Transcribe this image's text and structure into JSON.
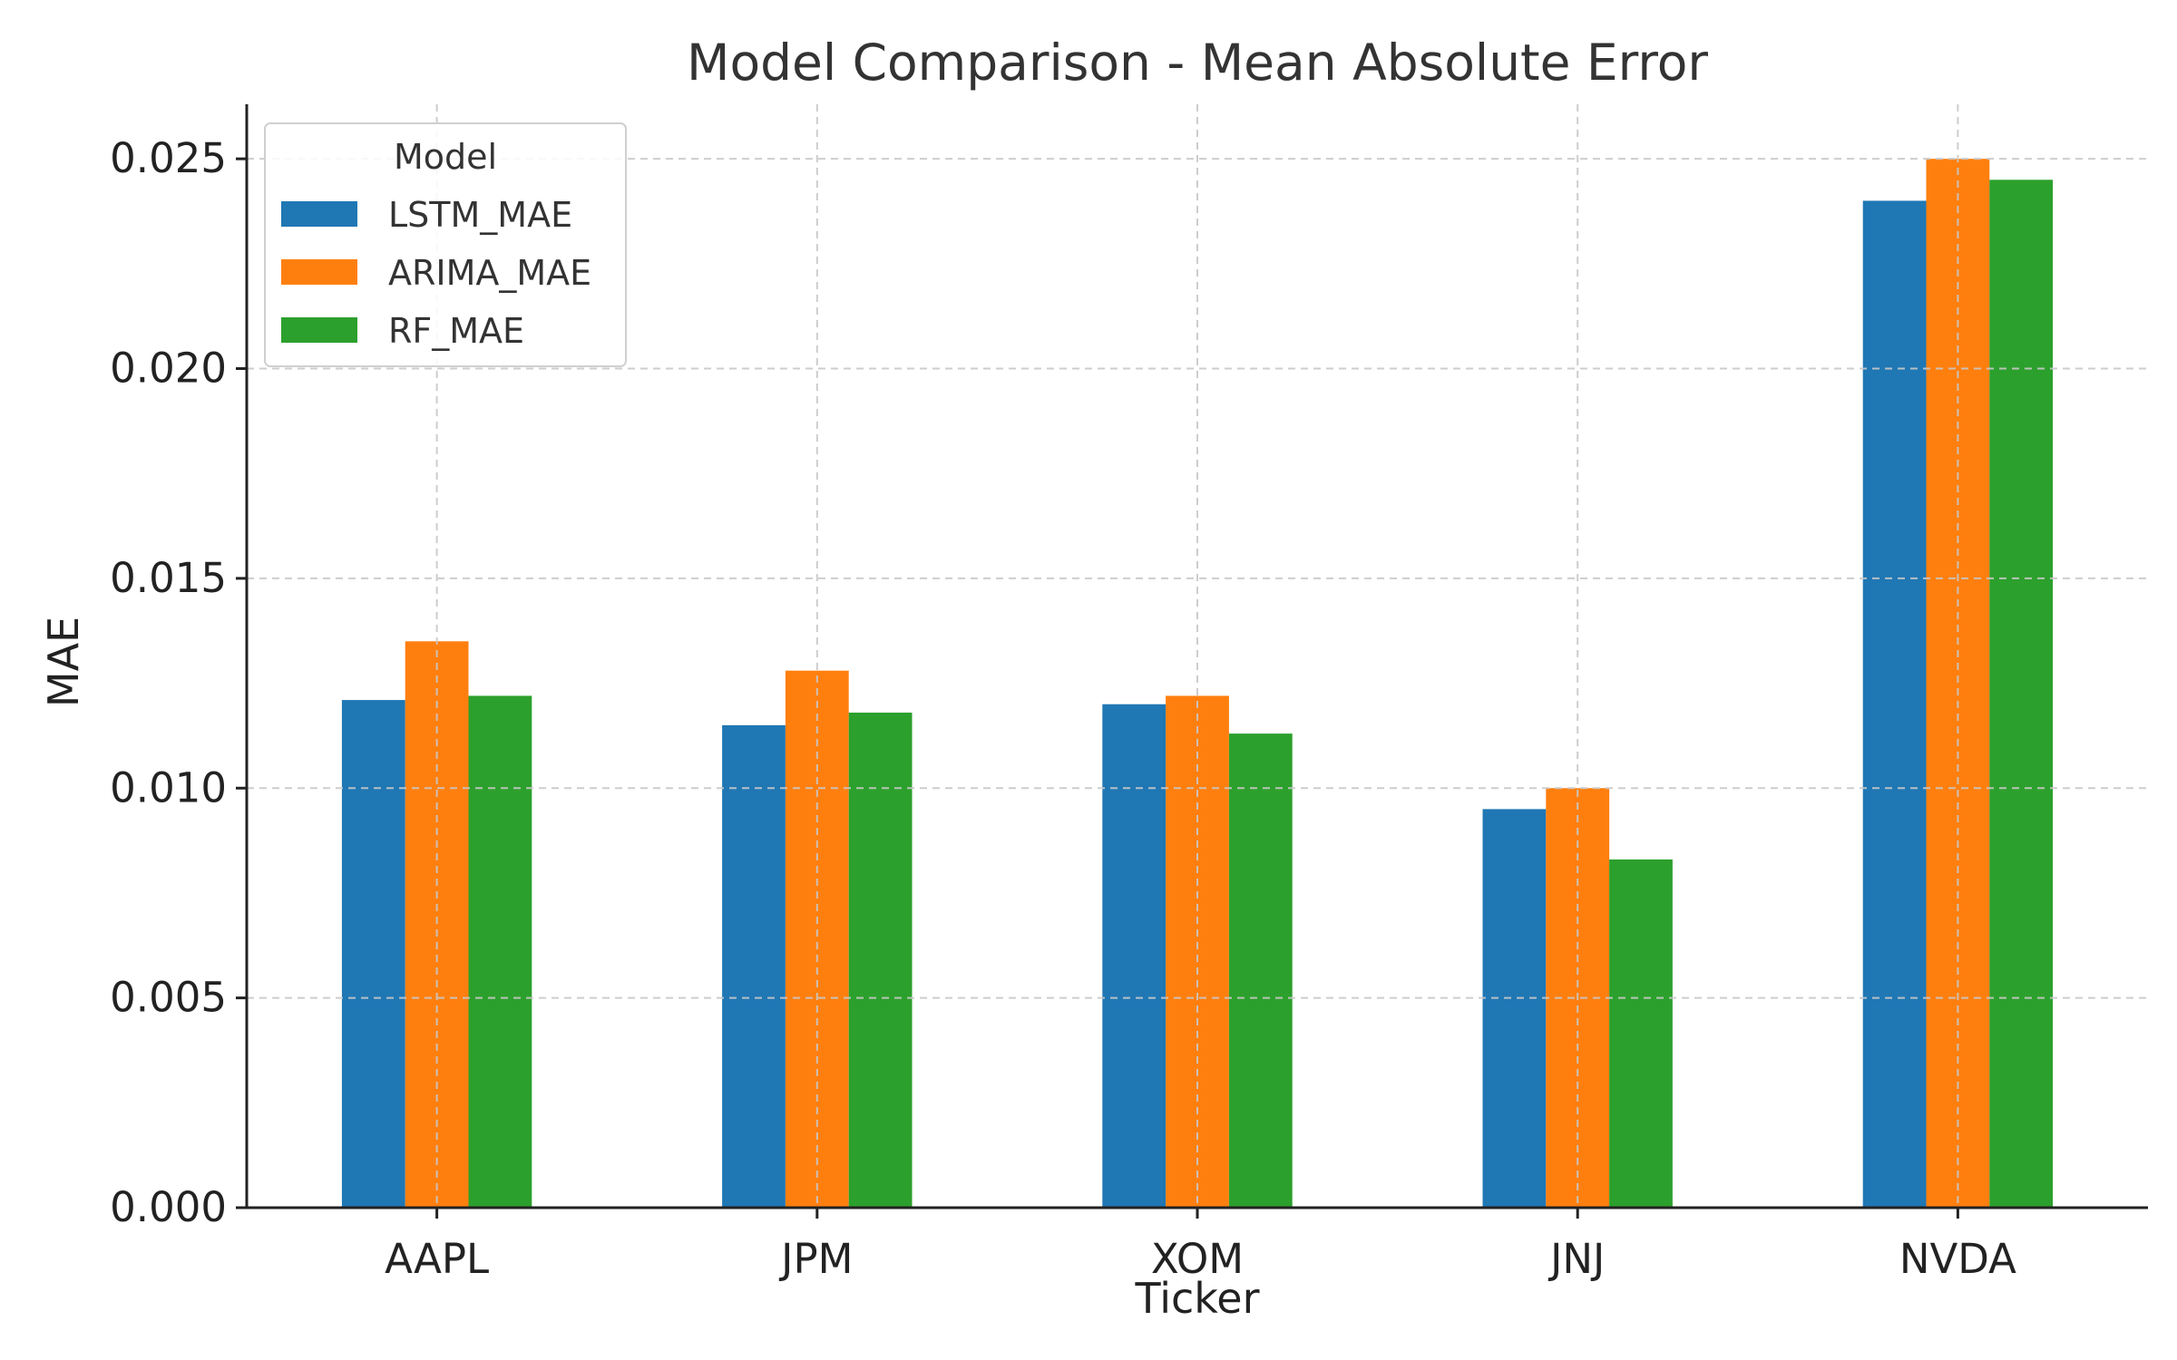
{
  "chart_data": {
    "type": "bar",
    "title": "Model Comparison - Mean Absolute Error",
    "xlabel": "Ticker",
    "ylabel": "MAE",
    "categories": [
      "AAPL",
      "JPM",
      "XOM",
      "JNJ",
      "NVDA"
    ],
    "series": [
      {
        "name": "LSTM_MAE",
        "color": "#1f77b4",
        "values": [
          0.0121,
          0.0115,
          0.012,
          0.0095,
          0.024
        ]
      },
      {
        "name": "ARIMA_MAE",
        "color": "#ff7f0e",
        "values": [
          0.0135,
          0.0128,
          0.0122,
          0.01,
          0.025
        ]
      },
      {
        "name": "RF_MAE",
        "color": "#2ca02c",
        "values": [
          0.0122,
          0.0118,
          0.0113,
          0.0083,
          0.0245
        ]
      }
    ],
    "ylim": [
      0,
      0.0263
    ],
    "yticks": [
      "0.000",
      "0.005",
      "0.010",
      "0.015",
      "0.020",
      "0.025"
    ],
    "grid": true,
    "legend": {
      "title": "Model",
      "placement": "top-left"
    }
  }
}
